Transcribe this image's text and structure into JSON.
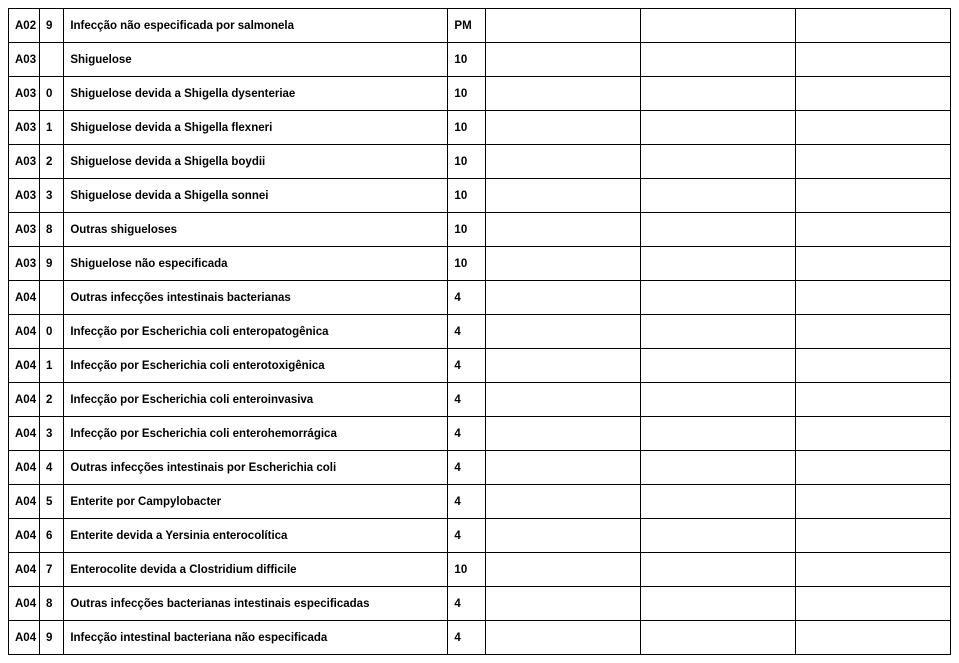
{
  "table": {
    "columns": [
      {
        "key": "code",
        "class": "col-code"
      },
      {
        "key": "sub",
        "class": "col-sub"
      },
      {
        "key": "desc",
        "class": "col-desc"
      },
      {
        "key": "val",
        "class": "col-val"
      },
      {
        "key": "e1",
        "class": "col-e1"
      },
      {
        "key": "e2",
        "class": "col-e2"
      },
      {
        "key": "e3",
        "class": "col-e3"
      }
    ],
    "rows": [
      {
        "code": "A02",
        "sub": "9",
        "desc": "Infecção não especificada por salmonela",
        "val": "PM",
        "e1": "",
        "e2": "",
        "e3": ""
      },
      {
        "code": "A03",
        "sub": "",
        "desc": "Shiguelose",
        "val": "10",
        "e1": "",
        "e2": "",
        "e3": ""
      },
      {
        "code": "A03",
        "sub": "0",
        "desc": "Shiguelose devida a Shigella dysenteriae",
        "val": "10",
        "e1": "",
        "e2": "",
        "e3": ""
      },
      {
        "code": "A03",
        "sub": "1",
        "desc": "Shiguelose devida a Shigella flexneri",
        "val": "10",
        "e1": "",
        "e2": "",
        "e3": ""
      },
      {
        "code": "A03",
        "sub": "2",
        "desc": "Shiguelose devida a Shigella boydii",
        "val": "10",
        "e1": "",
        "e2": "",
        "e3": ""
      },
      {
        "code": "A03",
        "sub": "3",
        "desc": "Shiguelose devida a Shigella sonnei",
        "val": "10",
        "e1": "",
        "e2": "",
        "e3": ""
      },
      {
        "code": "A03",
        "sub": "8",
        "desc": "Outras shigueloses",
        "val": "10",
        "e1": "",
        "e2": "",
        "e3": ""
      },
      {
        "code": "A03",
        "sub": "9",
        "desc": "Shiguelose não especificada",
        "val": "10",
        "e1": "",
        "e2": "",
        "e3": ""
      },
      {
        "code": "A04",
        "sub": "",
        "desc": "Outras infecções intestinais bacterianas",
        "val": "4",
        "e1": "",
        "e2": "",
        "e3": ""
      },
      {
        "code": "A04",
        "sub": "0",
        "desc": "Infecção por Escherichia coli enteropatogênica",
        "val": "4",
        "e1": "",
        "e2": "",
        "e3": ""
      },
      {
        "code": "A04",
        "sub": "1",
        "desc": "Infecção por Escherichia coli enterotoxigênica",
        "val": "4",
        "e1": "",
        "e2": "",
        "e3": ""
      },
      {
        "code": "A04",
        "sub": "2",
        "desc": "Infecção por Escherichia coli enteroinvasiva",
        "val": "4",
        "e1": "",
        "e2": "",
        "e3": ""
      },
      {
        "code": "A04",
        "sub": "3",
        "desc": "Infecção por Escherichia coli enterohemorrágica",
        "val": "4",
        "e1": "",
        "e2": "",
        "e3": ""
      },
      {
        "code": "A04",
        "sub": "4",
        "desc": "Outras infecções intestinais por Escherichia coli",
        "val": "4",
        "e1": "",
        "e2": "",
        "e3": ""
      },
      {
        "code": "A04",
        "sub": "5",
        "desc": "Enterite por Campylobacter",
        "val": "4",
        "e1": "",
        "e2": "",
        "e3": ""
      },
      {
        "code": "A04",
        "sub": "6",
        "desc": "Enterite devida a Yersinia enterocolítica",
        "val": "4",
        "e1": "",
        "e2": "",
        "e3": ""
      },
      {
        "code": "A04",
        "sub": "7",
        "desc": "Enterocolite devida a Clostridium difficile",
        "val": "10",
        "e1": "",
        "e2": "",
        "e3": ""
      },
      {
        "code": "A04",
        "sub": "8",
        "desc": "Outras infecções bacterianas intestinais especificadas",
        "val": "4",
        "e1": "",
        "e2": "",
        "e3": ""
      },
      {
        "code": "A04",
        "sub": "9",
        "desc": "Infecção intestinal bacteriana não especificada",
        "val": "4",
        "e1": "",
        "e2": "",
        "e3": ""
      }
    ]
  }
}
